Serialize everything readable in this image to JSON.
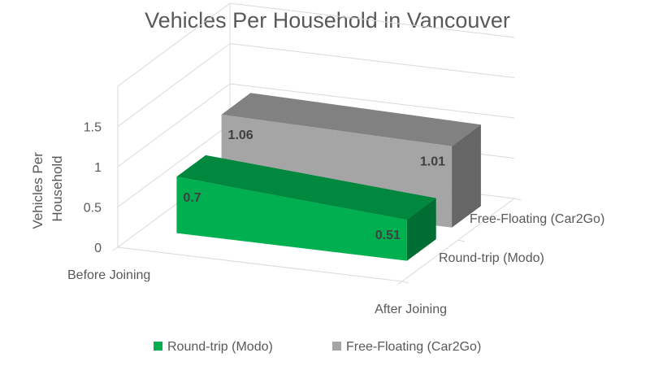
{
  "chart_data": {
    "type": "bar",
    "title": "Vehicles Per Household in Vancouver",
    "ylabel": "Vehicles Per Household",
    "ylabel_lines": [
      "Vehicles Per",
      "Household"
    ],
    "xlabel": "",
    "categories": [
      "Before Joining",
      "After Joining"
    ],
    "y_ticks": [
      "0",
      "0.5",
      "1",
      "1.5"
    ],
    "ylim": [
      0,
      2
    ],
    "series": [
      {
        "name": "Round-trip (Modo)",
        "values": [
          0.7,
          0.51
        ],
        "labels": [
          "0.7",
          "0.51"
        ],
        "color": "#00B050"
      },
      {
        "name": "Free-Floating (Car2Go)",
        "values": [
          1.06,
          1.01
        ],
        "labels": [
          "1.06",
          "1.01"
        ],
        "color": "#A5A5A5"
      }
    ],
    "legend_position": "bottom",
    "grid": true,
    "style": "3d"
  }
}
